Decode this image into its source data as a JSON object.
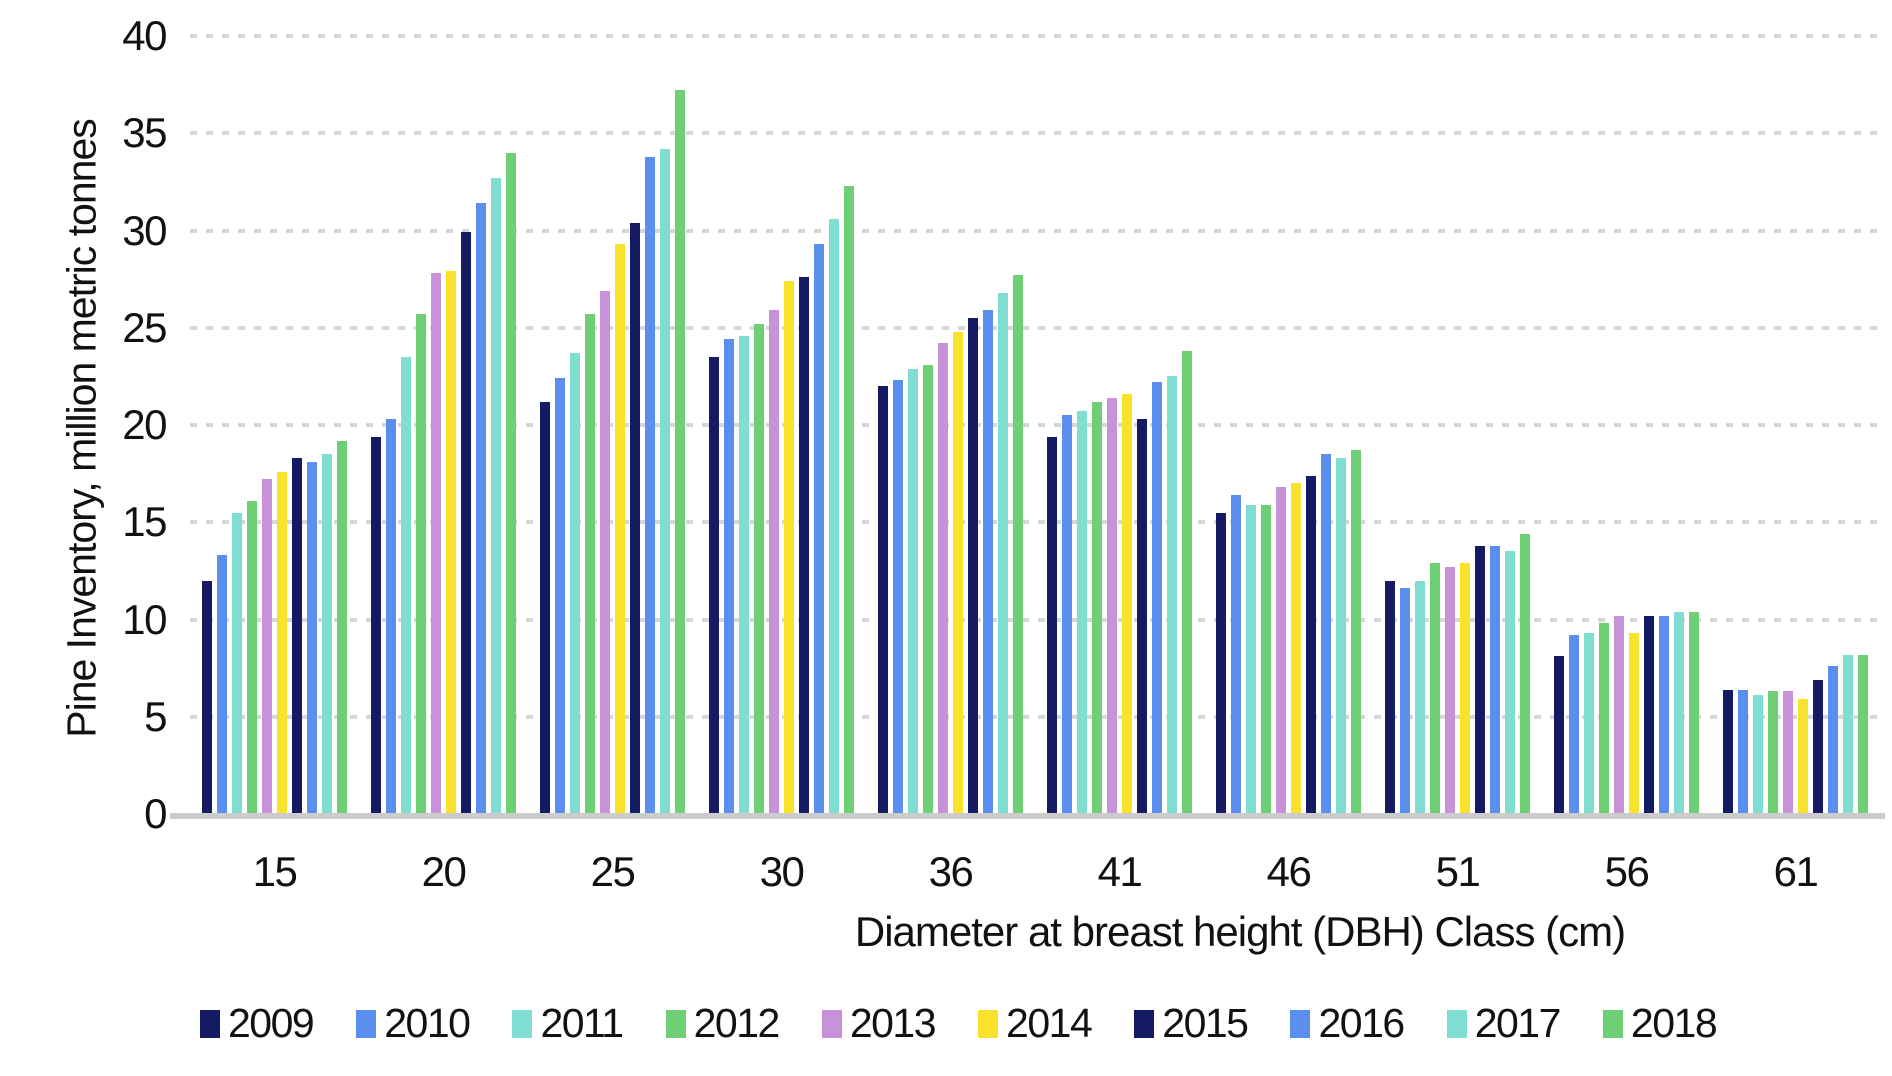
{
  "chart_data": {
    "type": "bar",
    "title": "",
    "xlabel": "Diameter at breast height (DBH) Class (cm)",
    "ylabel": "Pine Inventory, million metric tonnes",
    "categories": [
      "15",
      "20",
      "25",
      "30",
      "36",
      "41",
      "46",
      "51",
      "56",
      "61"
    ],
    "ylim": [
      0,
      40
    ],
    "yticks": [
      0,
      5,
      10,
      15,
      20,
      25,
      30,
      35,
      40
    ],
    "grid": "horizontal-dashed",
    "legend_position": "bottom",
    "series": [
      {
        "name": "2009",
        "color": "#141b63",
        "values": [
          12.0,
          19.4,
          21.2,
          23.5,
          22.0,
          19.4,
          15.5,
          12.0,
          8.1,
          6.4
        ]
      },
      {
        "name": "2010",
        "color": "#5a8ff0",
        "values": [
          13.3,
          20.3,
          22.4,
          24.4,
          22.3,
          20.5,
          16.4,
          11.6,
          9.2,
          6.4
        ]
      },
      {
        "name": "2011",
        "color": "#7fddd2",
        "values": [
          15.5,
          23.5,
          23.7,
          24.6,
          22.9,
          20.7,
          15.9,
          12.0,
          9.3,
          6.1
        ]
      },
      {
        "name": "2012",
        "color": "#6fcf74",
        "values": [
          16.1,
          25.7,
          25.7,
          25.2,
          23.1,
          21.2,
          15.9,
          12.9,
          9.8,
          6.3
        ]
      },
      {
        "name": "2013",
        "color": "#c992d8",
        "values": [
          17.2,
          27.8,
          26.9,
          25.9,
          24.2,
          21.4,
          16.8,
          12.7,
          10.2,
          6.3
        ]
      },
      {
        "name": "2014",
        "color": "#f8e22b",
        "values": [
          17.6,
          27.9,
          29.3,
          27.4,
          24.8,
          21.6,
          17.0,
          12.9,
          9.3,
          5.9
        ]
      },
      {
        "name": "2015",
        "color": "#141b63",
        "values": [
          18.3,
          29.9,
          30.4,
          27.6,
          25.5,
          20.3,
          17.4,
          13.8,
          10.2,
          6.9
        ]
      },
      {
        "name": "2016",
        "color": "#5a8ff0",
        "values": [
          18.1,
          31.4,
          33.8,
          29.3,
          25.9,
          22.2,
          18.5,
          13.8,
          10.2,
          7.6
        ]
      },
      {
        "name": "2017",
        "color": "#7fddd2",
        "values": [
          18.5,
          32.7,
          34.2,
          30.6,
          26.8,
          22.5,
          18.3,
          13.5,
          10.4,
          8.2
        ]
      },
      {
        "name": "2018",
        "color": "#6fcf74",
        "values": [
          19.2,
          34.0,
          37.2,
          32.3,
          27.7,
          23.8,
          18.7,
          14.4,
          10.4,
          8.2
        ]
      }
    ],
    "axis_colors": {
      "gridline": "#d7d7d7",
      "baseline": "#cccccc",
      "text": "#111111"
    }
  }
}
